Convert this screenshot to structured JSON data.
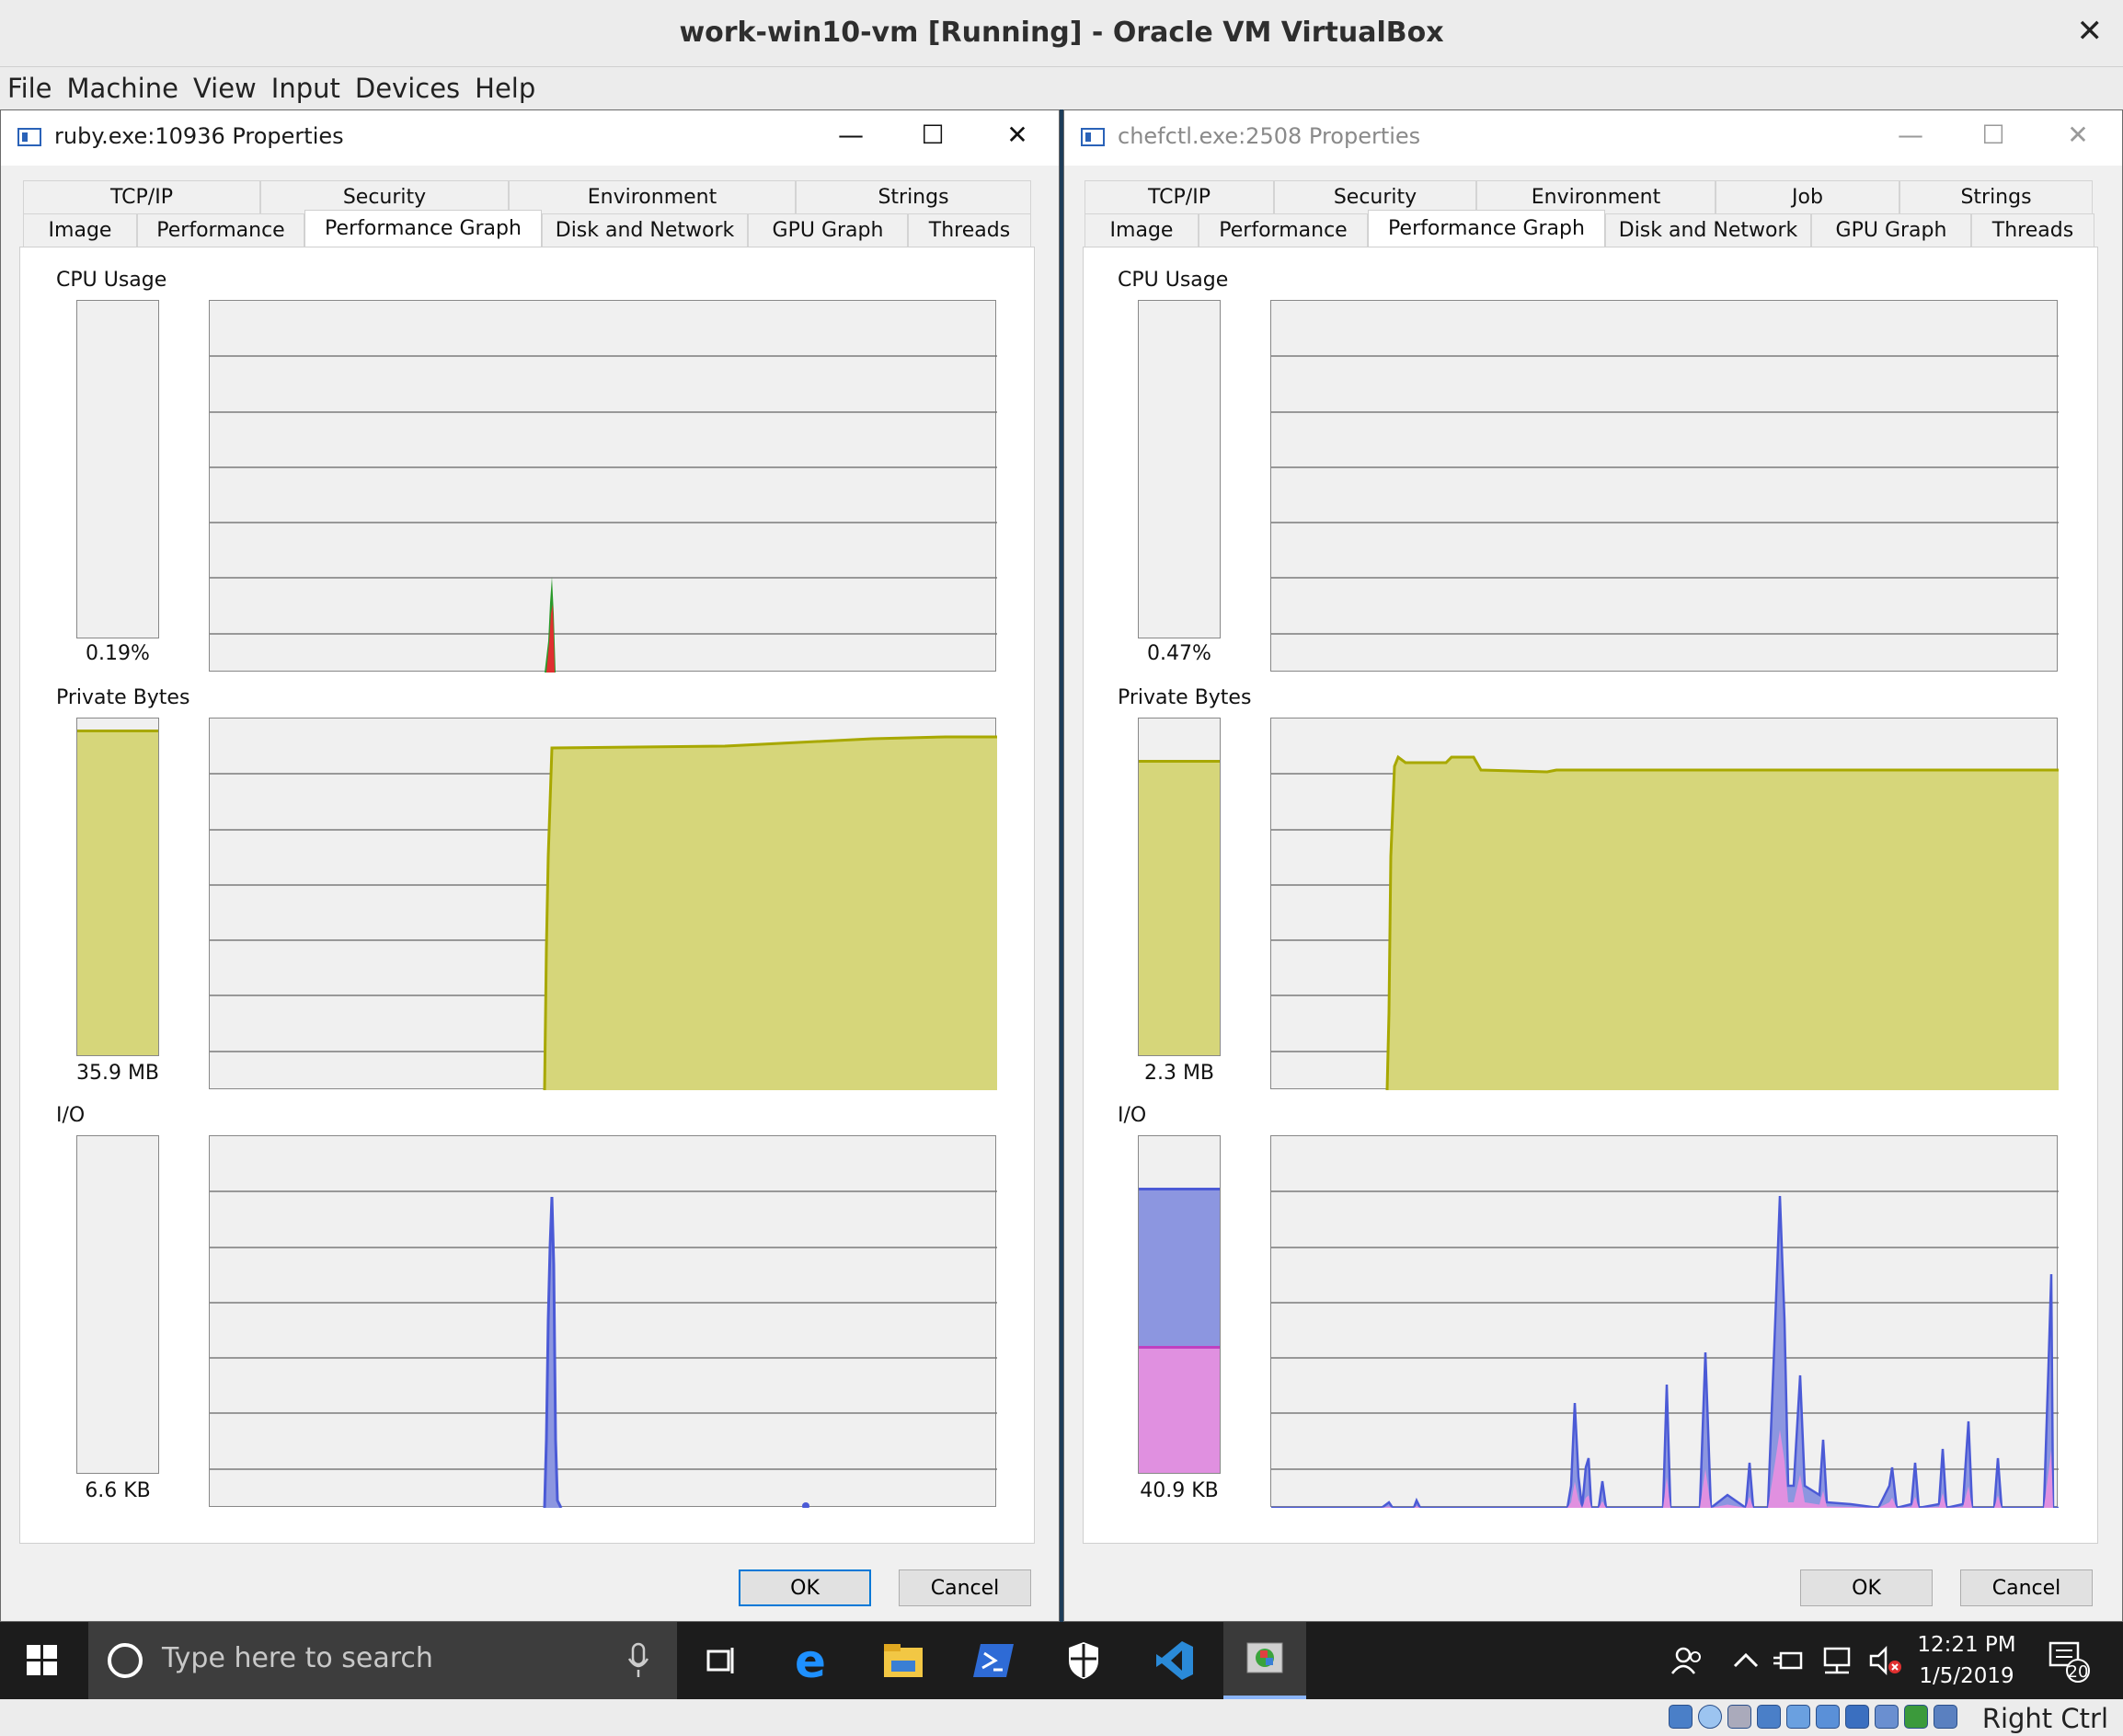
{
  "window": {
    "title": "work-win10-vm [Running] - Oracle VM VirtualBox",
    "close": "✕"
  },
  "menu": [
    "File",
    "Machine",
    "View",
    "Input",
    "Devices",
    "Help"
  ],
  "left": {
    "title": "ruby.exe:10936 Properties",
    "tabs_top": [
      "TCP/IP",
      "Security",
      "Environment",
      "Strings"
    ],
    "tabs_bottom": [
      "Image",
      "Performance",
      "Performance Graph",
      "Disk and Network",
      "GPU Graph",
      "Threads"
    ],
    "selected_tab": "Performance Graph",
    "cpu_label": "CPU Usage",
    "cpu_value": "0.19%",
    "cpu_fill": 0.0,
    "bytes_label": "Private Bytes",
    "bytes_value": "35.9 MB",
    "bytes_fill": 0.96,
    "io_label": "I/O",
    "io_value": "6.6  KB",
    "io_fill": 0.0,
    "ok": "OK",
    "cancel": "Cancel"
  },
  "right": {
    "title": "chefctl.exe:2508 Properties",
    "tabs_top": [
      "TCP/IP",
      "Security",
      "Environment",
      "Job",
      "Strings"
    ],
    "tabs_bottom": [
      "Image",
      "Performance",
      "Performance Graph",
      "Disk and Network",
      "GPU Graph",
      "Threads"
    ],
    "selected_tab": "Performance Graph",
    "cpu_label": "CPU Usage",
    "cpu_value": "0.47%",
    "cpu_fill": 0.0,
    "bytes_label": "Private Bytes",
    "bytes_value": "2.3 MB",
    "bytes_fill": 0.87,
    "io_label": "I/O",
    "io_value": "40.9  KB",
    "io_fill": 0.84,
    "io_fill_pink": 0.37,
    "ok": "OK",
    "cancel": "Cancel"
  },
  "colors": {
    "bytes": "#d6d67a",
    "bytes_line": "#a8a800",
    "io_blue": "#4b5ad6",
    "io_fill": "#8c96e0",
    "io_pink": "#e090e0",
    "cpu_red": "#e03030",
    "cpu_green": "#2a9a2a"
  },
  "taskbar": {
    "search_placeholder": "Type here to search",
    "time": "12:21 PM",
    "date": "1/5/2019",
    "notifications": "20"
  },
  "status": {
    "host_key": "Right Ctrl"
  }
}
